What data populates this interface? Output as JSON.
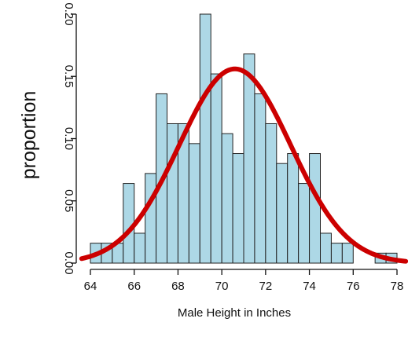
{
  "chart_data": {
    "type": "bar",
    "subtype": "histogram-with-normal-curve",
    "xlabel": "Male Height in Inches",
    "ylabel": "proportion",
    "xlim": [
      64,
      78
    ],
    "ylim": [
      0,
      0.2
    ],
    "x_ticks": [
      64,
      66,
      68,
      70,
      72,
      74,
      76,
      78
    ],
    "x_tick_labels": [
      "64",
      "66",
      "68",
      "70",
      "72",
      "74",
      "76",
      "78"
    ],
    "y_ticks": [
      0,
      0.05,
      0.1,
      0.15,
      0.2
    ],
    "y_tick_labels": [
      "0.00",
      "0.05",
      "0.10",
      "0.15",
      "0.20"
    ],
    "bin_width": 0.5,
    "bins": [
      {
        "start": 64.0,
        "value": 0.016
      },
      {
        "start": 64.5,
        "value": 0.016
      },
      {
        "start": 65.0,
        "value": 0.016
      },
      {
        "start": 65.5,
        "value": 0.064
      },
      {
        "start": 66.0,
        "value": 0.024
      },
      {
        "start": 66.5,
        "value": 0.072
      },
      {
        "start": 67.0,
        "value": 0.136
      },
      {
        "start": 67.5,
        "value": 0.112
      },
      {
        "start": 68.0,
        "value": 0.112
      },
      {
        "start": 68.5,
        "value": 0.096
      },
      {
        "start": 69.0,
        "value": 0.2
      },
      {
        "start": 69.5,
        "value": 0.152
      },
      {
        "start": 70.0,
        "value": 0.104
      },
      {
        "start": 70.5,
        "value": 0.088
      },
      {
        "start": 71.0,
        "value": 0.168
      },
      {
        "start": 71.5,
        "value": 0.136
      },
      {
        "start": 72.0,
        "value": 0.112
      },
      {
        "start": 72.5,
        "value": 0.08
      },
      {
        "start": 73.0,
        "value": 0.088
      },
      {
        "start": 73.5,
        "value": 0.064
      },
      {
        "start": 74.0,
        "value": 0.088
      },
      {
        "start": 74.5,
        "value": 0.024
      },
      {
        "start": 75.0,
        "value": 0.016
      },
      {
        "start": 75.5,
        "value": 0.016
      },
      {
        "start": 76.0,
        "value": 0.0
      },
      {
        "start": 76.5,
        "value": 0.0
      },
      {
        "start": 77.0,
        "value": 0.008
      },
      {
        "start": 77.5,
        "value": 0.008
      }
    ],
    "curve": {
      "type": "normal",
      "mean": 70.6,
      "sd": 2.55,
      "peak": 0.156
    },
    "bar_color": "#add8e6",
    "bar_edge_color": "#222222",
    "curve_color": "#cc0000",
    "grid": false,
    "legend": "none"
  }
}
